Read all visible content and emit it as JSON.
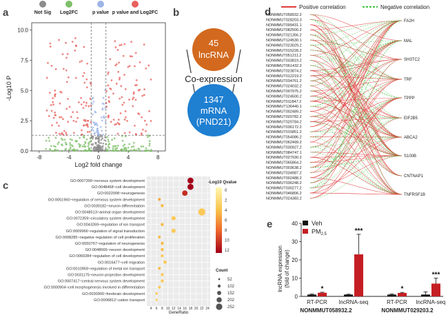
{
  "panels": {
    "a": {
      "letter": "a",
      "legend": [
        "Not Sig",
        "Log2FC",
        "p value",
        "p value and Log2FC"
      ],
      "legend_colors": [
        "#8c8c8c",
        "#7fbf6a",
        "#9fb5e8",
        "#e8605c"
      ],
      "ylabel": "-Log10 P",
      "xlabel": "Log2 fold change",
      "xticks": [
        "-8",
        "-4",
        "0",
        "4",
        "8"
      ],
      "yticks": [
        "0.0",
        "2.5",
        "5.0",
        "7.5",
        "10.0"
      ]
    },
    "b": {
      "letter": "b",
      "top_circle": [
        "45",
        "lncRNA"
      ],
      "middle_label": "Co-expression",
      "bottom_circle": [
        "1347",
        "mRNA",
        "(PND21)"
      ],
      "colors": {
        "top": "#d2691e",
        "bottom": "#1f7fd1"
      }
    },
    "c": {
      "letter": "c",
      "terms": [
        "GO:0007399~nervous system development",
        "GO:0048468~cell development",
        "GO:0022008~neurogenesis",
        "GO:0051960~regulation of nervous system development",
        "GO:0030182~neuron differentiation",
        "GO:0048513~animal organ development",
        "GO:0072359~circulatory system development",
        "GO:0043269~regulation of ion transport",
        "GO:0009966~regulation of signal transduction",
        "GO:0008285~negative regulation of cell proliferation",
        "GO:0050767~regulation of neurogenesis",
        "GO:0048666~neuron development",
        "GO:0060284~regulation of cell development",
        "GO:0016477~cell migration",
        "GO:0010959~regulation of metal ion transport",
        "GO:0031175~neuron projection development",
        "GO:0007417~central nervous system development",
        "GO:0000904~cell morphogenesis involved in differentiation",
        "GO:0030900~forebrain development",
        "GO:0006812~cation transport"
      ],
      "gene_ratio": [
        18,
        18,
        16,
        7,
        8,
        22,
        12,
        8,
        12,
        7,
        8,
        8,
        8,
        9,
        7,
        8,
        8,
        7,
        6,
        6
      ],
      "qvalue_level": [
        14,
        14,
        12,
        6,
        5,
        4,
        4,
        5,
        4,
        5,
        5,
        5,
        4,
        4,
        5,
        4,
        4,
        4,
        4,
        3
      ],
      "xticks": [
        "4",
        "6",
        "8",
        "10",
        "12",
        "14",
        "16",
        "18",
        "20",
        "22",
        "24"
      ],
      "xlabel": "GeneRatio",
      "colorbar_title": "-Log10 Qvalue",
      "colorbar_ticks": [
        "0",
        "2",
        "4",
        "6",
        "8",
        "10",
        "12"
      ],
      "size_title": "Count",
      "size_ticks": [
        "52",
        "102",
        "152",
        "202",
        "252"
      ]
    },
    "d": {
      "letter": "d",
      "legend_positive": "Positive correlation",
      "legend_negative": "Negative correlation",
      "lncrnas": [
        "NONMMUT058932.2",
        "NONMMUT028203.3",
        "NONMMUT099431.1",
        "NONMMUT082500.2",
        "NONMMUT021356.2",
        "NONMMUT124530.1",
        "NONMMUT023029.2",
        "NONMMUT015228.2",
        "NONMMUT051211.2",
        "NONMMUT033819.2",
        "NONMMUT061432.2",
        "NONMMUT023874.2",
        "NONMMUT012219.2",
        "NONMMUT034761.2",
        "NONMMUT024032.2",
        "NONMMUT007975.2",
        "NONMMUT024500.2",
        "NONMMUT011847.2",
        "NONMMUT136440.1",
        "NONMMUT002489.2",
        "NONMMUT020782.2",
        "NONMMUT020784.2",
        "NONMMUT036172.2",
        "NONMMUT015851.2",
        "NONMMUT054086.2",
        "NONMMUT062499.2",
        "NONMMUT030927.2",
        "NONMMUT084747.1",
        "NONMMUT027930.2",
        "NONMMUT065864.2",
        "NONMMUT003638.2",
        "NONMMUT034987.2",
        "NONMMUT002488.2",
        "NONMMUT036248.2",
        "NONMMUT030277.2",
        "NONMMUT046806.2",
        "NONMMUT024383.2"
      ],
      "genes": [
        "FA2H",
        "MAL",
        "SH3TC2",
        "TRF",
        "TPPP",
        "EIF2B5",
        "ABCA2",
        "S100B",
        "CNTNAP1",
        "TNFRSF1B"
      ],
      "colors": {
        "positive": "#e03a3a",
        "negative": "#3cc43c"
      }
    },
    "e": {
      "letter": "e",
      "legend": [
        "Veh",
        "PM2.5"
      ],
      "legend_sub": "2.5",
      "legend_base": "PM",
      "ylabel_lines": [
        "lncRNA expression",
        "(fold of change)"
      ],
      "yticks": [
        "0",
        "10",
        "20",
        "30",
        "40"
      ],
      "groups": [
        {
          "label": "RT-PCR",
          "gene": "NONMMUT058932.2"
        },
        {
          "label": "lncRNA-seq",
          "gene": "NONMMUT058932.2"
        },
        {
          "label": "RT-PCR",
          "gene": "NONMMUT029203.2"
        },
        {
          "label": "lncRNA-seq",
          "gene": "NONMMUT029203.2"
        }
      ],
      "gene_labels": [
        "NONMMUT058932.2",
        "NONMMUT029203.2"
      ],
      "significance": [
        "*",
        "***",
        "*",
        "***"
      ],
      "colors": {
        "veh": "#111111",
        "pm": "#c41e24"
      }
    }
  },
  "chart_data": [
    {
      "type": "bar",
      "title": "",
      "categories": [
        "RT-PCR (NONMMUT058932.2)",
        "lncRNA-seq (NONMMUT058932.2)",
        "RT-PCR (NONMMUT029203.2)",
        "lncRNA-seq (NONMMUT029203.2)"
      ],
      "series": [
        {
          "name": "Veh",
          "values": [
            1.0,
            1.0,
            1.0,
            1.0
          ],
          "errors": [
            0.3,
            0.2,
            0.3,
            1.5
          ]
        },
        {
          "name": "PM2.5",
          "values": [
            2.0,
            23.0,
            1.9,
            7.0
          ],
          "errors": [
            0.3,
            11.0,
            0.3,
            3.0
          ]
        }
      ],
      "ylabel": "lncRNA expression (fold of change)",
      "ylim": [
        0,
        40
      ]
    },
    {
      "type": "scatter",
      "title": "",
      "xlabel": "GeneRatio",
      "x": [
        18,
        18,
        16,
        7,
        8,
        22,
        12,
        8,
        12,
        7,
        8,
        8,
        8,
        9,
        7,
        8,
        8,
        7,
        6,
        6
      ],
      "xlim": [
        4,
        24
      ]
    }
  ]
}
